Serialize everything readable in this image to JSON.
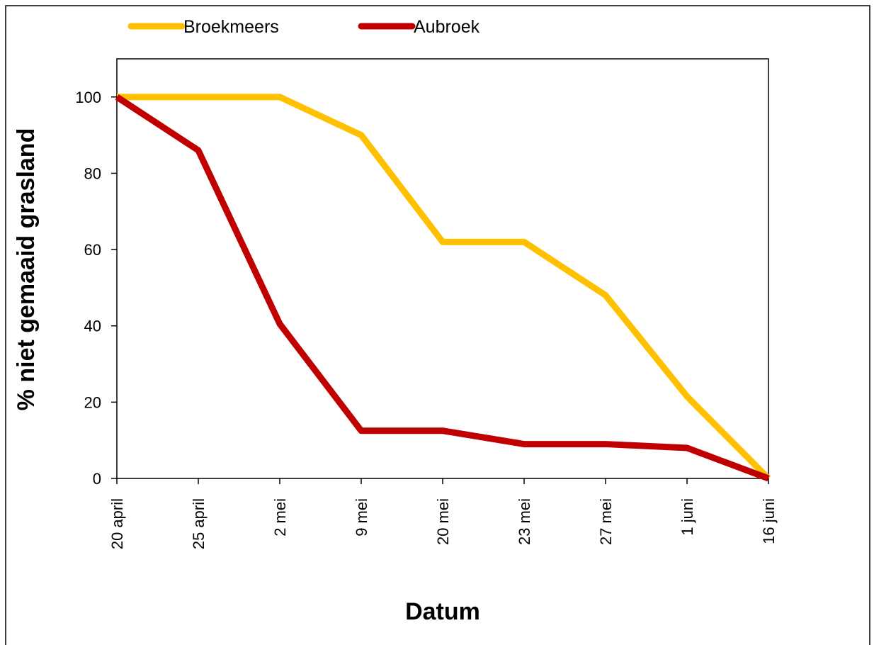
{
  "chart_data": {
    "type": "line",
    "x_label": "Datum",
    "y_label": "% niet gemaaid grasland",
    "categories": [
      "20 april",
      "25 april",
      "2 mei",
      "9 mei",
      "20 mei",
      "23 mei",
      "27 mei",
      "1 juni",
      "16 juni"
    ],
    "series": [
      {
        "name": "Broekmeers",
        "color": "#ffc000",
        "values": [
          100,
          100,
          100,
          90,
          62,
          62,
          48,
          21.5,
          0
        ]
      },
      {
        "name": "Aubroek",
        "color": "#c00000",
        "values": [
          100,
          86,
          40.5,
          12.5,
          12.5,
          9,
          9,
          8,
          0
        ]
      }
    ],
    "ylim": [
      0,
      110
    ],
    "yticks": [
      0,
      20,
      40,
      60,
      80,
      100
    ],
    "grid": false,
    "legend": "top"
  }
}
